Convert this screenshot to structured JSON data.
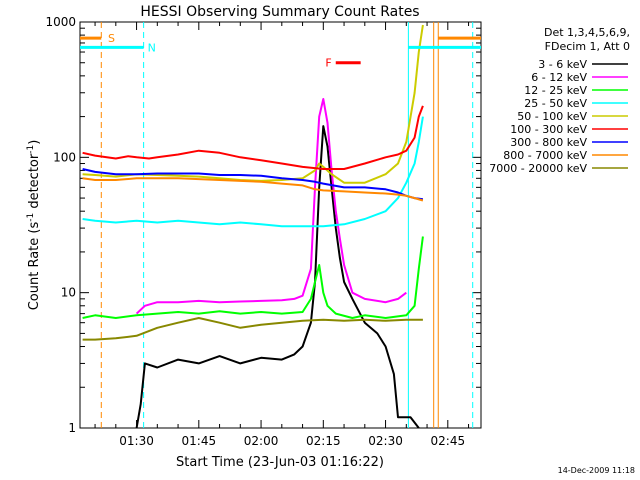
{
  "chart_data": {
    "type": "line",
    "title": "HESSI Observing Summary Count Rates",
    "xlabel": "Start Time (23-Jun-03 01:16:22)",
    "ylabel_main": "Count Rate (s",
    "ylabel_sup1": "-1",
    "ylabel_mid": " detector",
    "ylabel_sup2": "-1",
    "ylabel_end": ")",
    "yscale": "log",
    "ylim": [
      1,
      1000
    ],
    "xlim_min": [
      76.37,
      173
    ],
    "yticks": [
      {
        "v": 1,
        "label": "1"
      },
      {
        "v": 10,
        "label": "10"
      },
      {
        "v": 100,
        "label": "100"
      },
      {
        "v": 1000,
        "label": "1000"
      }
    ],
    "xticks": [
      {
        "t": 90,
        "label": "01:30"
      },
      {
        "t": 105,
        "label": "01:45"
      },
      {
        "t": 120,
        "label": "02:00"
      },
      {
        "t": 135,
        "label": "02:15"
      },
      {
        "t": 150,
        "label": "02:30"
      },
      {
        "t": 165,
        "label": "02:45"
      }
    ],
    "legend_header": [
      "Det 1,3,4,5,6,9,",
      "FDecim 1, Att 0"
    ],
    "series": [
      {
        "name": "3 - 6 keV",
        "color": "#000000",
        "points": [
          [
            90,
            1
          ],
          [
            91,
            1.5
          ],
          [
            92,
            3.0
          ],
          [
            95,
            2.8
          ],
          [
            100,
            3.2
          ],
          [
            105,
            3.0
          ],
          [
            110,
            3.4
          ],
          [
            115,
            3.0
          ],
          [
            120,
            3.3
          ],
          [
            125,
            3.2
          ],
          [
            128,
            3.5
          ],
          [
            130,
            4.0
          ],
          [
            132,
            6
          ],
          [
            133,
            12
          ],
          [
            134,
            60
          ],
          [
            135,
            170
          ],
          [
            136,
            120
          ],
          [
            137,
            60
          ],
          [
            138,
            30
          ],
          [
            139,
            18
          ],
          [
            140,
            12
          ],
          [
            142,
            9
          ],
          [
            145,
            6
          ],
          [
            148,
            5
          ],
          [
            150,
            4
          ],
          [
            152,
            2.5
          ],
          [
            153,
            1.2
          ],
          [
            156,
            1.2
          ],
          [
            158,
            1
          ]
        ]
      },
      {
        "name": "6 - 12 keV",
        "color": "#ff00ff",
        "points": [
          [
            90,
            7
          ],
          [
            92,
            8
          ],
          [
            95,
            8.5
          ],
          [
            100,
            8.5
          ],
          [
            105,
            8.7
          ],
          [
            110,
            8.5
          ],
          [
            115,
            8.6
          ],
          [
            120,
            8.7
          ],
          [
            125,
            8.8
          ],
          [
            128,
            9
          ],
          [
            130,
            9.5
          ],
          [
            132,
            15
          ],
          [
            133,
            60
          ],
          [
            134,
            200
          ],
          [
            135,
            270
          ],
          [
            136,
            180
          ],
          [
            137,
            80
          ],
          [
            138,
            40
          ],
          [
            139,
            25
          ],
          [
            140,
            16
          ],
          [
            142,
            10
          ],
          [
            145,
            9
          ],
          [
            150,
            8.5
          ],
          [
            153,
            9
          ],
          [
            155,
            10
          ]
        ]
      },
      {
        "name": "12 - 25 keV",
        "color": "#00ff00",
        "points": [
          [
            77,
            6.5
          ],
          [
            80,
            6.8
          ],
          [
            85,
            6.5
          ],
          [
            90,
            6.8
          ],
          [
            95,
            7
          ],
          [
            100,
            7.2
          ],
          [
            105,
            7
          ],
          [
            110,
            7.3
          ],
          [
            115,
            7
          ],
          [
            120,
            7.2
          ],
          [
            125,
            7
          ],
          [
            130,
            7.2
          ],
          [
            132,
            9
          ],
          [
            133,
            12
          ],
          [
            134,
            16
          ],
          [
            135,
            10
          ],
          [
            136,
            8
          ],
          [
            138,
            7
          ],
          [
            142,
            6.5
          ],
          [
            145,
            6.8
          ],
          [
            150,
            6.5
          ],
          [
            155,
            6.8
          ],
          [
            157,
            8
          ],
          [
            158,
            15
          ],
          [
            159,
            26
          ]
        ]
      },
      {
        "name": "25 - 50 keV",
        "color": "#00ffff",
        "points": [
          [
            77,
            35
          ],
          [
            80,
            34
          ],
          [
            85,
            33
          ],
          [
            90,
            34
          ],
          [
            95,
            33
          ],
          [
            100,
            34
          ],
          [
            105,
            33
          ],
          [
            110,
            32
          ],
          [
            115,
            33
          ],
          [
            120,
            32
          ],
          [
            125,
            31
          ],
          [
            130,
            31
          ],
          [
            135,
            31
          ],
          [
            140,
            32
          ],
          [
            145,
            35
          ],
          [
            150,
            40
          ],
          [
            153,
            50
          ],
          [
            155,
            65
          ],
          [
            157,
            90
          ],
          [
            158,
            130
          ],
          [
            159,
            200
          ]
        ]
      },
      {
        "name": "50 - 100 keV",
        "color": "#cccc00",
        "points": [
          [
            77,
            75
          ],
          [
            80,
            74
          ],
          [
            85,
            72
          ],
          [
            90,
            75
          ],
          [
            95,
            74
          ],
          [
            100,
            73
          ],
          [
            105,
            72
          ],
          [
            110,
            70
          ],
          [
            115,
            68
          ],
          [
            120,
            67
          ],
          [
            125,
            68
          ],
          [
            130,
            70
          ],
          [
            133,
            80
          ],
          [
            134,
            90
          ],
          [
            135,
            85
          ],
          [
            137,
            75
          ],
          [
            140,
            65
          ],
          [
            145,
            65
          ],
          [
            150,
            75
          ],
          [
            153,
            90
          ],
          [
            155,
            130
          ],
          [
            157,
            300
          ],
          [
            158,
            600
          ],
          [
            159,
            950
          ]
        ]
      },
      {
        "name": "100 - 300 keV",
        "color": "#ff0000",
        "points": [
          [
            77,
            108
          ],
          [
            80,
            103
          ],
          [
            85,
            98
          ],
          [
            88,
            102
          ],
          [
            90,
            100
          ],
          [
            93,
            98
          ],
          [
            95,
            100
          ],
          [
            100,
            105
          ],
          [
            105,
            112
          ],
          [
            110,
            108
          ],
          [
            115,
            100
          ],
          [
            120,
            95
          ],
          [
            125,
            90
          ],
          [
            130,
            85
          ],
          [
            135,
            82
          ],
          [
            140,
            82
          ],
          [
            145,
            90
          ],
          [
            150,
            100
          ],
          [
            153,
            105
          ],
          [
            155,
            112
          ],
          [
            157,
            140
          ],
          [
            158,
            200
          ],
          [
            159,
            240
          ]
        ]
      },
      {
        "name": "300 - 800 keV",
        "color": "#0000ff",
        "points": [
          [
            77,
            82
          ],
          [
            80,
            78
          ],
          [
            85,
            75
          ],
          [
            90,
            75
          ],
          [
            95,
            76
          ],
          [
            100,
            76
          ],
          [
            105,
            76
          ],
          [
            110,
            74
          ],
          [
            115,
            74
          ],
          [
            120,
            73
          ],
          [
            125,
            70
          ],
          [
            130,
            68
          ],
          [
            133,
            66
          ],
          [
            135,
            64
          ],
          [
            140,
            60
          ],
          [
            145,
            60
          ],
          [
            150,
            58
          ],
          [
            153,
            55
          ],
          [
            155,
            52
          ],
          [
            157,
            50
          ],
          [
            159,
            49
          ]
        ]
      },
      {
        "name": "800 - 7000 keV",
        "color": "#ff8800",
        "points": [
          [
            77,
            70
          ],
          [
            80,
            68
          ],
          [
            85,
            68
          ],
          [
            90,
            70
          ],
          [
            95,
            70
          ],
          [
            100,
            70
          ],
          [
            105,
            69
          ],
          [
            110,
            68
          ],
          [
            115,
            67
          ],
          [
            120,
            66
          ],
          [
            125,
            64
          ],
          [
            130,
            62
          ],
          [
            133,
            58
          ],
          [
            135,
            57
          ],
          [
            140,
            56
          ],
          [
            145,
            55
          ],
          [
            150,
            54
          ],
          [
            153,
            53
          ],
          [
            155,
            52
          ],
          [
            157,
            50
          ],
          [
            159,
            48
          ]
        ]
      },
      {
        "name": "7000 - 20000 keV",
        "color": "#888800",
        "points": [
          [
            77,
            4.5
          ],
          [
            80,
            4.5
          ],
          [
            85,
            4.6
          ],
          [
            90,
            4.8
          ],
          [
            95,
            5.5
          ],
          [
            100,
            6.0
          ],
          [
            105,
            6.5
          ],
          [
            110,
            6.0
          ],
          [
            115,
            5.5
          ],
          [
            120,
            5.8
          ],
          [
            125,
            6.0
          ],
          [
            130,
            6.2
          ],
          [
            135,
            6.3
          ],
          [
            140,
            6.2
          ],
          [
            145,
            6.3
          ],
          [
            150,
            6.2
          ],
          [
            155,
            6.3
          ],
          [
            159,
            6.3
          ]
        ]
      }
    ],
    "markers": [
      {
        "type": "S",
        "label": "S",
        "color": "#ff8800",
        "t0": 76.37,
        "t1": 81.5,
        "y": 760
      },
      {
        "type": "S",
        "label": "",
        "color": "#ff8800",
        "t0": 162.7,
        "t1": 173,
        "y": 760
      },
      {
        "type": "N",
        "label": "N",
        "color": "#00ffff",
        "t0": 76.37,
        "t1": 91.7,
        "y": 650
      },
      {
        "type": "N",
        "label": "",
        "color": "#00ffff",
        "t0": 155.5,
        "t1": 173,
        "y": 650
      },
      {
        "type": "F",
        "label": "F",
        "color": "#ff0000",
        "t0": 138,
        "t1": 144,
        "y": 500
      }
    ],
    "vlines": [
      {
        "t": 81.5,
        "color": "#ff8800",
        "dashed": true
      },
      {
        "t": 91.7,
        "color": "#00ffff",
        "dashed": true
      },
      {
        "t": 155.5,
        "color": "#00ffff",
        "dashed": false
      },
      {
        "t": 161.6,
        "color": "#ff8800",
        "dashed": false
      },
      {
        "t": 162.7,
        "color": "#ff8800",
        "dashed": false
      },
      {
        "t": 171,
        "color": "#00ffff",
        "dashed": true
      }
    ],
    "footer": "14-Dec-2009 11:18"
  }
}
